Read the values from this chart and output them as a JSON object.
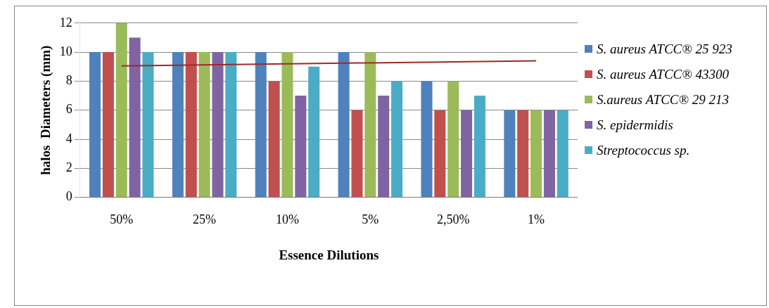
{
  "chart_data": {
    "type": "bar",
    "xlabel": "Essence Dilutions",
    "ylabel": "halos  Diameters (mm)",
    "categories": [
      "50%",
      "25%",
      "10%",
      "5%",
      "2,50%",
      "1%"
    ],
    "series": [
      {
        "name": "S. aureus ATCC® 25 923",
        "color": "#4f81bd",
        "values": [
          10,
          10,
          10,
          10,
          8,
          6
        ]
      },
      {
        "name": "S. aureus ATCC® 43300",
        "color": "#c0504d",
        "values": [
          10,
          10,
          8,
          6,
          6,
          6
        ]
      },
      {
        "name": "S.aureus ATCC® 29 213",
        "color": "#9bbb59",
        "values": [
          12,
          10,
          10,
          10,
          8,
          6
        ]
      },
      {
        "name": "S. epidermidis",
        "color": "#8064a2",
        "values": [
          11,
          10,
          7,
          7,
          6,
          6
        ]
      },
      {
        "name": "Streptococcus sp.",
        "color": "#4bacc6",
        "values": [
          10,
          10,
          9,
          8,
          7,
          6
        ]
      },
      {
        "type": "line",
        "color": "#a0282a",
        "values": [
          9.05,
          9.12,
          9.19,
          9.26,
          9.33,
          9.4
        ]
      }
    ],
    "ylim": [
      0,
      12
    ],
    "yticks": [
      0,
      2,
      4,
      6,
      8,
      10,
      12
    ],
    "grid": "y",
    "legend": "right"
  }
}
